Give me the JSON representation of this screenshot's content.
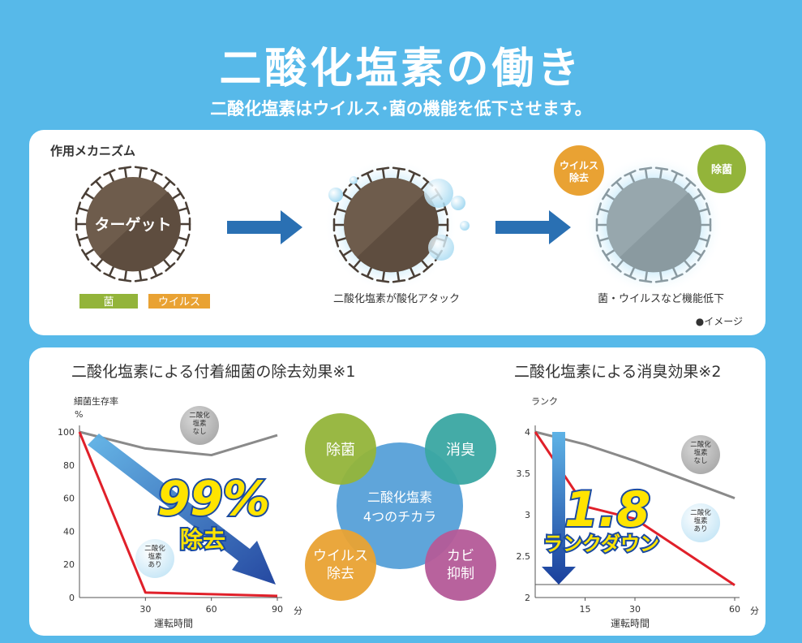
{
  "header": {
    "title": "二酸化塩素の働き",
    "subtitle": "二酸化塩素はウイルス･菌の機能を低下させます。"
  },
  "mechanism": {
    "heading": "作用メカニズム",
    "target_label": "ターゲット",
    "legend_bacteria": "菌",
    "legend_virus": "ウイルス",
    "step2_caption": "二酸化塩素が酸化アタック",
    "badge_virus": "ウイルス\n除去",
    "badge_sterilize": "除菌",
    "step3_caption": "菌・ウイルスなど機能低下",
    "image_note": "●イメージ"
  },
  "bacteria_chart": {
    "title": "二酸化塩素による付着細菌の除去効果※1",
    "ylabel": "細菌生存率",
    "yunit": "%",
    "xlabel": "運転時間",
    "xunit": "分",
    "yticks": [
      "100",
      "80",
      "60",
      "40",
      "20",
      "0"
    ],
    "xticks": [
      "30",
      "60",
      "90"
    ],
    "callout": "99%",
    "callout_sub": "除去",
    "label_without": "二酸化\n塩素\nなし",
    "label_with": "二酸化\n塩素\nあり"
  },
  "four_powers": {
    "center": "二酸化塩素\n4つのチカラ",
    "sterilize": "除菌",
    "deodorize": "消臭",
    "virus_removal": "ウイルス\n除去",
    "mold": "カビ\n抑制"
  },
  "odor_chart": {
    "title": "二酸化塩素による消臭効果※2",
    "ylabel": "ランク",
    "xlabel": "運転時間",
    "xunit": "分",
    "yticks": [
      "4",
      "3.5",
      "3",
      "2.5",
      "2"
    ],
    "xticks": [
      "15",
      "30",
      "60"
    ],
    "callout": "1.8",
    "callout_sub": "ランクダウン",
    "label_without": "二酸化\n塩素\nなし",
    "label_with": "二酸化\n塩素\nあり"
  },
  "chart_data": [
    {
      "type": "line",
      "title": "二酸化塩素による付着細菌の除去効果※1",
      "xlabel": "運転時間",
      "ylabel": "細菌生存率",
      "xlim": [
        0,
        90
      ],
      "ylim": [
        0,
        100
      ],
      "series": [
        {
          "name": "二酸化塩素なし",
          "color": "#8a8a8a",
          "x": [
            0,
            30,
            60,
            90
          ],
          "y": [
            100,
            90,
            86,
            98
          ]
        },
        {
          "name": "二酸化塩素あり",
          "color": "#e0202a",
          "x": [
            0,
            30,
            60,
            90
          ],
          "y": [
            100,
            3,
            2,
            1
          ]
        }
      ]
    },
    {
      "type": "line",
      "title": "二酸化塩素による消臭効果※2",
      "xlabel": "運転時間",
      "ylabel": "ランク",
      "xlim": [
        0,
        60
      ],
      "ylim": [
        2,
        4
      ],
      "series": [
        {
          "name": "二酸化塩素なし",
          "color": "#8a8a8a",
          "x": [
            0,
            15,
            30,
            60
          ],
          "y": [
            4,
            3.85,
            3.65,
            3.2
          ]
        },
        {
          "name": "二酸化塩素あり",
          "color": "#e0202a",
          "x": [
            0,
            15,
            30,
            60
          ],
          "y": [
            4,
            3.1,
            2.95,
            2.15
          ]
        }
      ]
    }
  ]
}
